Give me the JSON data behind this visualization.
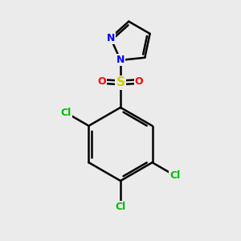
{
  "bg_color": "#ebebeb",
  "bond_color": "#000000",
  "bond_width": 1.8,
  "atom_colors": {
    "N": "#0000ff",
    "S": "#cccc00",
    "O": "#ff0000",
    "Cl": "#00bb00",
    "C": "#000000"
  },
  "font_size": 9,
  "fig_size": [
    3.0,
    3.0
  ],
  "dpi": 100,
  "xlim": [
    0,
    10
  ],
  "ylim": [
    0,
    10
  ]
}
